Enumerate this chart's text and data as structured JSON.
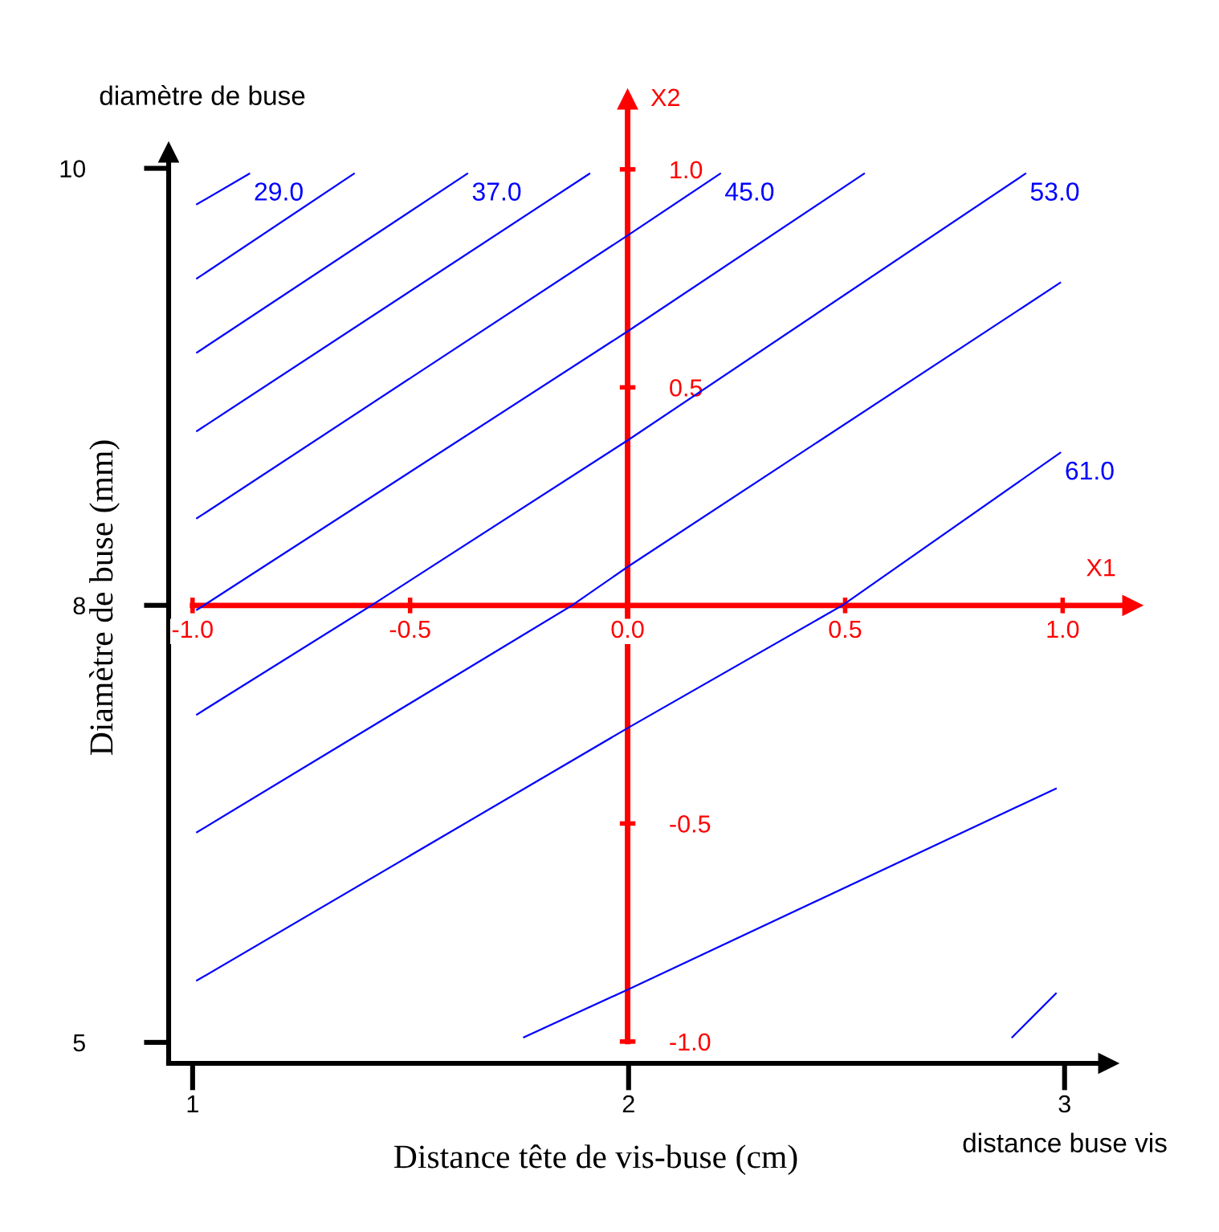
{
  "chart_data": {
    "type": "line",
    "xlabel": "Distance tête de vis-buse (cm)",
    "ylabel": "Diamètre de buse (mm)",
    "x2label": "X1",
    "y2label": "X2",
    "annotations": [
      "diamètre de buse",
      "distance buse vis"
    ],
    "xlim": [
      0.945,
      3.1
    ],
    "ylim": [
      4.88,
      10.09
    ],
    "xticks": [
      1,
      2,
      3
    ],
    "yticks": [
      5,
      {
        "value": 7.5,
        "label": "8"
      },
      10
    ],
    "x2lim": [
      -1.055,
      1.16
    ],
    "x2ticks": [
      {
        "value": -1,
        "label": "-1.0"
      },
      {
        "value": -0.5,
        "label": "-0.5"
      },
      {
        "value": 0,
        "label": "0.0"
      },
      {
        "value": 0.5,
        "label": "0.5"
      },
      {
        "value": 1,
        "label": "1.0"
      }
    ],
    "y2lim": [
      -1.05,
      1.16
    ],
    "y2ticks": [
      {
        "value": -1,
        "label": "-1.0"
      },
      {
        "value": -0.5,
        "label": "-0.5"
      },
      {
        "value": 0.5,
        "label": "0.5"
      },
      {
        "value": 1,
        "label": "1.0"
      }
    ],
    "line_style": "solid",
    "series": [
      {
        "name": "29.0",
        "color": "#0000ff",
        "axis": "y2",
        "x": [
          1.01,
          1.13
        ],
        "values": [
          0.92,
          0.99
        ]
      },
      {
        "color": "#0000ff",
        "axis": "y2",
        "x": [
          1.01,
          1.37
        ],
        "values": [
          0.75,
          0.99
        ]
      },
      {
        "name": "37.0",
        "color": "#0000ff",
        "axis": "y2",
        "x": [
          1.01,
          1.63
        ],
        "values": [
          0.58,
          0.99
        ]
      },
      {
        "color": "#0000ff",
        "axis": "y2",
        "x": [
          1.01,
          1.91
        ],
        "values": [
          0.4,
          0.99
        ]
      },
      {
        "name": "45.0",
        "color": "#0000ff",
        "axis": "y2",
        "x": [
          1.01,
          2,
          2.21
        ],
        "values": [
          0.2,
          0.85,
          0.99
        ]
      },
      {
        "color": "#0000ff",
        "axis": "y2",
        "x": [
          1.01,
          2,
          2.54
        ],
        "values": [
          -0.01,
          0.63,
          0.99
        ]
      },
      {
        "name": "53.0",
        "color": "#0000ff",
        "axis": "y2",
        "x": [
          1.01,
          1.41,
          2,
          2.91
        ],
        "values": [
          -0.25,
          0,
          0.38,
          0.99
        ]
      },
      {
        "color": "#0000ff",
        "axis": "y2",
        "x": [
          1.01,
          1.87,
          2,
          2.99
        ],
        "values": [
          -0.52,
          0,
          0.09,
          0.74
        ]
      },
      {
        "name": "61.0",
        "color": "#0000ff",
        "axis": "y2",
        "x": [
          1.01,
          2,
          2.49,
          2.99
        ],
        "values": [
          -0.86,
          -0.28,
          0,
          0.35
        ]
      },
      {
        "color": "#0000ff",
        "axis": "y2",
        "x": [
          1.76,
          2,
          2.98
        ],
        "values": [
          -0.99,
          -0.88,
          -0.42
        ]
      },
      {
        "color": "#0000ff",
        "axis": "y2",
        "x": [
          2.88,
          2.98
        ],
        "values": [
          -0.99,
          -0.89
        ]
      }
    ]
  }
}
